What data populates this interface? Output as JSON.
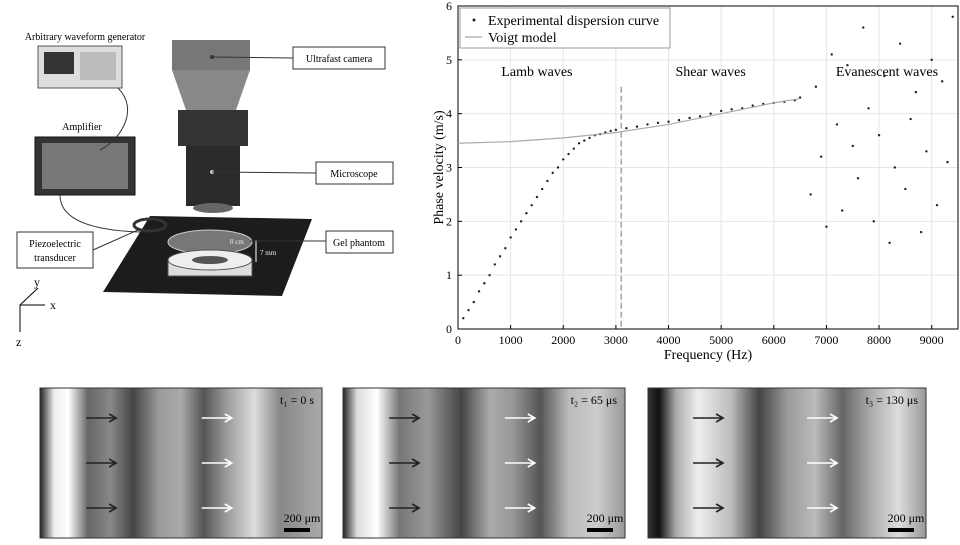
{
  "diagram": {
    "labels": {
      "generator": "Arbitrary waveform generator",
      "amplifier": "Amplifier",
      "camera": "Ultrafast camera",
      "microscope": "Microscope",
      "transducer": [
        "Piezoelectric",
        "transducer"
      ],
      "phantom": "Gel phantom",
      "width": "8 cm",
      "thickness": "7 mm",
      "axis_x": "x",
      "axis_y": "y",
      "axis_z": "z"
    }
  },
  "chart_data": {
    "type": "scatter",
    "xlabel": "Frequency (Hz)",
    "ylabel": "Phase velocity (m/s)",
    "xlim": [
      0,
      9500
    ],
    "ylim": [
      0,
      6
    ],
    "xticks": [
      0,
      1000,
      2000,
      3000,
      4000,
      5000,
      6000,
      7000,
      8000,
      9000
    ],
    "yticks": [
      0,
      1,
      2,
      3,
      4,
      5,
      6
    ],
    "grid": true,
    "legend": "upper-left",
    "vline": 3100,
    "annotations": [
      {
        "text": "Lamb waves",
        "x": 1500,
        "y": 4.7
      },
      {
        "text": "Shear waves",
        "x": 4800,
        "y": 4.7
      },
      {
        "text": "Evanescent waves",
        "x": 8150,
        "y": 4.7
      }
    ],
    "series": [
      {
        "name": "Experimental dispersion curve",
        "mark": "point",
        "color": "#222222",
        "x": [
          100,
          200,
          300,
          400,
          500,
          600,
          700,
          800,
          900,
          1000,
          1100,
          1200,
          1300,
          1400,
          1500,
          1600,
          1700,
          1800,
          1900,
          2000,
          2100,
          2200,
          2300,
          2400,
          2500,
          2600,
          2700,
          2800,
          2900,
          3000,
          3200,
          3400,
          3600,
          3800,
          4000,
          4200,
          4400,
          4600,
          4800,
          5000,
          5200,
          5400,
          5600,
          5800,
          6000,
          6200,
          6400,
          6500,
          6700,
          6800,
          6900,
          7000,
          7100,
          7200,
          7300,
          7400,
          7500,
          7600,
          7700,
          7800,
          7900,
          8000,
          8100,
          8200,
          8300,
          8400,
          8500,
          8600,
          8700,
          8800,
          8900,
          9000,
          9100,
          9200,
          9300,
          9400
        ],
        "values": [
          0.2,
          0.35,
          0.5,
          0.7,
          0.85,
          1.0,
          1.2,
          1.35,
          1.5,
          1.7,
          1.85,
          2.0,
          2.15,
          2.3,
          2.45,
          2.6,
          2.75,
          2.9,
          3.0,
          3.15,
          3.25,
          3.35,
          3.45,
          3.5,
          3.55,
          3.6,
          3.62,
          3.65,
          3.68,
          3.7,
          3.73,
          3.76,
          3.8,
          3.83,
          3.85,
          3.88,
          3.92,
          3.95,
          4.0,
          4.05,
          4.08,
          4.1,
          4.15,
          4.18,
          4.2,
          4.22,
          4.25,
          4.3,
          2.5,
          4.5,
          3.2,
          1.9,
          5.1,
          3.8,
          2.2,
          4.9,
          3.4,
          2.8,
          5.6,
          4.1,
          2.0,
          3.6,
          4.7,
          1.6,
          3.0,
          5.3,
          2.6,
          3.9,
          4.4,
          1.8,
          3.3,
          5.0,
          2.3,
          4.6,
          3.1,
          5.8
        ]
      },
      {
        "name": "Voigt model",
        "mark": "line",
        "color": "#aaaaaa",
        "x": [
          0,
          1000,
          2000,
          3000,
          4000,
          5000,
          6000,
          6500
        ],
        "values": [
          3.45,
          3.48,
          3.55,
          3.65,
          3.8,
          4.0,
          4.2,
          4.28
        ]
      }
    ]
  },
  "panels": [
    {
      "label": "t₁ = 0 s",
      "scale": "200 μm"
    },
    {
      "label": "t₂ = 65 μs",
      "scale": "200 μm"
    },
    {
      "label": "t₃ = 130 μs",
      "scale": "200 μm"
    }
  ]
}
